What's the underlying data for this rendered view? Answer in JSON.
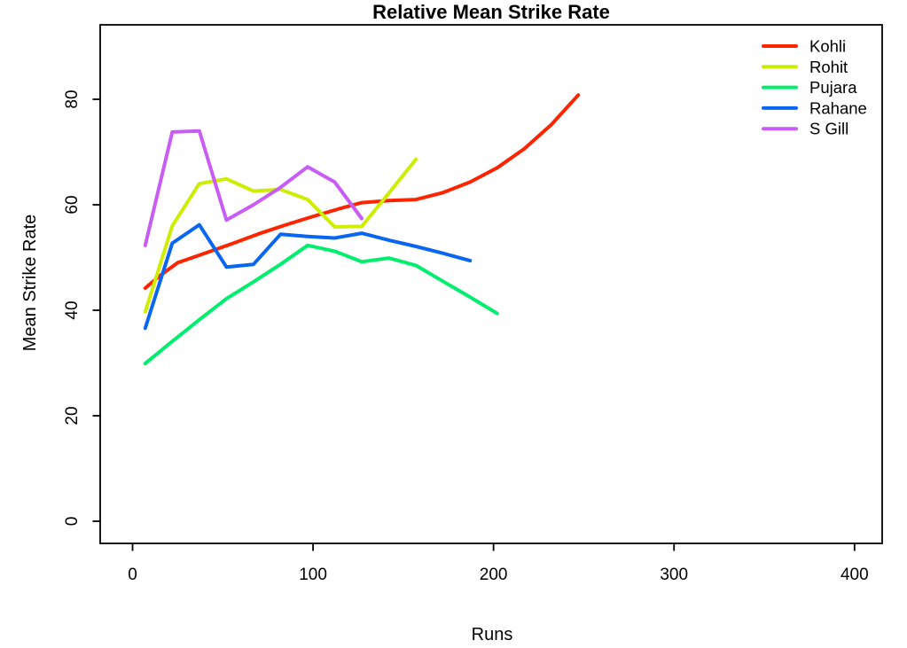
{
  "chart_data": {
    "type": "line",
    "title": "Relative Mean Strike Rate",
    "xlabel": "Runs",
    "ylabel": "Mean Strike Rate",
    "x_ticks": [
      0,
      100,
      200,
      300,
      400
    ],
    "y_ticks": [
      0,
      20,
      40,
      60,
      80
    ],
    "xlim": [
      -18,
      415
    ],
    "ylim": [
      -4,
      94
    ],
    "grid": false,
    "legend_position": "top-right",
    "frame_color": "#000000",
    "series": [
      {
        "name": "Kohli",
        "color": "#FF2400",
        "x": [
          7,
          15,
          25,
          40,
          55,
          70,
          85,
          100,
          115,
          127,
          142,
          157,
          172,
          187,
          202,
          217,
          232,
          247
        ],
        "y": [
          44.2,
          46.5,
          49.0,
          50.8,
          52.6,
          54.5,
          56.2,
          57.8,
          59.3,
          60.4,
          60.8,
          61.0,
          62.3,
          64.3,
          67.0,
          70.6,
          75.2,
          80.8
        ]
      },
      {
        "name": "Rohit",
        "color": "#CDEE00",
        "x": [
          7,
          22,
          37,
          52,
          67,
          82,
          97,
          112,
          127,
          142,
          157
        ],
        "y": [
          39.7,
          56.0,
          64.0,
          64.9,
          62.6,
          62.9,
          61.0,
          55.8,
          55.9,
          62.2,
          68.6
        ]
      },
      {
        "name": "Pujara",
        "color": "#00EE6E",
        "x": [
          7,
          22,
          37,
          52,
          67,
          82,
          97,
          112,
          127,
          142,
          157,
          172,
          187,
          202
        ],
        "y": [
          29.9,
          34.1,
          38.2,
          42.2,
          45.4,
          48.7,
          52.3,
          51.2,
          49.2,
          49.9,
          48.5,
          45.5,
          42.5,
          39.4
        ]
      },
      {
        "name": "Rahane",
        "color": "#0966F0",
        "x": [
          7,
          22,
          37,
          52,
          67,
          82,
          97,
          112,
          127,
          142,
          157,
          172,
          187
        ],
        "y": [
          36.6,
          52.7,
          56.2,
          48.2,
          48.7,
          54.4,
          54.0,
          53.7,
          54.6,
          53.3,
          52.1,
          50.8,
          49.4
        ]
      },
      {
        "name": "S Gill",
        "color": "#C85CF5",
        "x": [
          7,
          22,
          37,
          52,
          67,
          82,
          97,
          112,
          127
        ],
        "y": [
          52.3,
          73.8,
          74.0,
          57.1,
          60.0,
          63.3,
          67.2,
          64.3,
          57.4
        ]
      }
    ]
  }
}
